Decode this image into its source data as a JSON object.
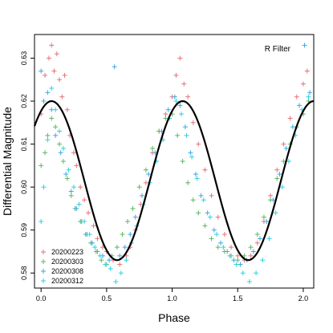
{
  "chart_data": {
    "type": "scatter",
    "title": "",
    "annotation": "R Filter",
    "xlabel": "Phase",
    "ylabel": "Differential Magnitude",
    "xlim": [
      -0.05,
      2.08
    ],
    "ylim": [
      0.5765,
      0.6355
    ],
    "x_ticks": [
      0.0,
      0.5,
      1.0,
      1.5,
      2.0
    ],
    "x_tick_labels": [
      "0.0",
      "0.5",
      "1.0",
      "1.5",
      "2.0"
    ],
    "y_ticks": [
      0.58,
      0.59,
      0.6,
      0.61,
      0.62,
      0.63
    ],
    "y_tick_labels": [
      "0.58",
      "0.59",
      "0.60",
      "0.61",
      "0.62",
      "0.63"
    ],
    "y_reversed": false,
    "marker": "+",
    "series": [
      {
        "name": "20200223",
        "color": "#e8717a",
        "points": [
          [
            0.0,
            0.617
          ],
          [
            0.03,
            0.626
          ],
          [
            0.06,
            0.63
          ],
          [
            0.08,
            0.633
          ],
          [
            0.1,
            0.627
          ],
          [
            0.12,
            0.631
          ],
          [
            0.14,
            0.625
          ],
          [
            0.16,
            0.621
          ],
          [
            0.18,
            0.626
          ],
          [
            0.2,
            0.618
          ],
          [
            0.22,
            0.612
          ],
          [
            0.25,
            0.608
          ],
          [
            0.27,
            0.605
          ],
          [
            0.3,
            0.6
          ],
          [
            0.33,
            0.597
          ],
          [
            0.36,
            0.594
          ],
          [
            0.4,
            0.591
          ],
          [
            0.43,
            0.588
          ],
          [
            0.47,
            0.586
          ],
          [
            0.5,
            0.585
          ],
          [
            0.55,
            0.583
          ],
          [
            0.6,
            0.582
          ],
          [
            0.65,
            0.584
          ],
          [
            0.68,
            0.586
          ],
          [
            0.72,
            0.59
          ],
          [
            0.76,
            0.596
          ],
          [
            0.8,
            0.601
          ],
          [
            0.85,
            0.608
          ],
          [
            0.9,
            0.613
          ],
          [
            0.95,
            0.617
          ],
          [
            1.0,
            0.621
          ],
          [
            1.03,
            0.626
          ],
          [
            1.06,
            0.63
          ],
          [
            1.09,
            0.624
          ],
          [
            1.12,
            0.621
          ],
          [
            1.16,
            0.615
          ],
          [
            1.2,
            0.61
          ],
          [
            1.25,
            0.604
          ],
          [
            1.3,
            0.598
          ],
          [
            1.35,
            0.593
          ],
          [
            1.4,
            0.589
          ],
          [
            1.45,
            0.586
          ],
          [
            1.5,
            0.584
          ],
          [
            1.55,
            0.583
          ],
          [
            1.6,
            0.584
          ],
          [
            1.65,
            0.587
          ],
          [
            1.7,
            0.592
          ],
          [
            1.75,
            0.598
          ],
          [
            1.8,
            0.604
          ],
          [
            1.85,
            0.61
          ],
          [
            1.9,
            0.616
          ],
          [
            1.95,
            0.621
          ],
          [
            2.0,
            0.624
          ],
          [
            2.03,
            0.627
          ]
        ]
      },
      {
        "name": "20200303",
        "color": "#5cb85c",
        "points": [
          [
            0.0,
            0.605
          ],
          [
            0.03,
            0.608
          ],
          [
            0.05,
            0.612
          ],
          [
            0.08,
            0.616
          ],
          [
            0.11,
            0.614
          ],
          [
            0.14,
            0.61
          ],
          [
            0.17,
            0.606
          ],
          [
            0.2,
            0.602
          ],
          [
            0.23,
            0.598
          ],
          [
            0.26,
            0.595
          ],
          [
            0.3,
            0.592
          ],
          [
            0.34,
            0.589
          ],
          [
            0.38,
            0.587
          ],
          [
            0.42,
            0.585
          ],
          [
            0.46,
            0.583
          ],
          [
            0.5,
            0.582
          ],
          [
            0.54,
            0.584
          ],
          [
            0.58,
            0.586
          ],
          [
            0.62,
            0.589
          ],
          [
            0.66,
            0.592
          ],
          [
            0.7,
            0.595
          ],
          [
            0.75,
            0.6
          ],
          [
            0.8,
            0.604
          ],
          [
            0.85,
            0.609
          ],
          [
            0.9,
            0.613
          ],
          [
            0.95,
            0.616
          ],
          [
            1.0,
            0.617
          ],
          [
            1.04,
            0.612
          ],
          [
            1.08,
            0.606
          ],
          [
            1.12,
            0.601
          ],
          [
            1.16,
            0.597
          ],
          [
            1.2,
            0.594
          ],
          [
            1.25,
            0.591
          ],
          [
            1.3,
            0.588
          ],
          [
            1.35,
            0.586
          ],
          [
            1.4,
            0.585
          ],
          [
            1.45,
            0.584
          ],
          [
            1.5,
            0.583
          ],
          [
            1.55,
            0.584
          ],
          [
            1.6,
            0.586
          ],
          [
            1.65,
            0.589
          ],
          [
            1.7,
            0.593
          ],
          [
            1.75,
            0.597
          ],
          [
            1.8,
            0.602
          ],
          [
            1.85,
            0.606
          ],
          [
            1.9,
            0.61
          ],
          [
            1.95,
            0.614
          ],
          [
            2.0,
            0.617
          ],
          [
            2.04,
            0.62
          ]
        ]
      },
      {
        "name": "20200308",
        "color": "#3fa7e0",
        "points": [
          [
            0.0,
            0.627
          ],
          [
            0.02,
            0.62
          ],
          [
            0.05,
            0.622
          ],
          [
            0.08,
            0.618
          ],
          [
            0.11,
            0.612
          ],
          [
            0.15,
            0.608
          ],
          [
            0.19,
            0.603
          ],
          [
            0.23,
            0.599
          ],
          [
            0.27,
            0.595
          ],
          [
            0.31,
            0.592
          ],
          [
            0.35,
            0.589
          ],
          [
            0.39,
            0.587
          ],
          [
            0.43,
            0.585
          ],
          [
            0.47,
            0.584
          ],
          [
            0.52,
            0.583
          ],
          [
            0.56,
            0.628
          ],
          [
            0.6,
            0.584
          ],
          [
            0.64,
            0.586
          ],
          [
            0.68,
            0.589
          ],
          [
            0.72,
            0.593
          ],
          [
            0.77,
            0.598
          ],
          [
            0.82,
            0.603
          ],
          [
            0.87,
            0.608
          ],
          [
            0.92,
            0.613
          ],
          [
            0.97,
            0.618
          ],
          [
            1.02,
            0.621
          ],
          [
            1.06,
            0.619
          ],
          [
            1.1,
            0.614
          ],
          [
            1.14,
            0.608
          ],
          [
            1.18,
            0.603
          ],
          [
            1.22,
            0.598
          ],
          [
            1.27,
            0.594
          ],
          [
            1.32,
            0.59
          ],
          [
            1.37,
            0.587
          ],
          [
            1.42,
            0.585
          ],
          [
            1.47,
            0.583
          ],
          [
            1.52,
            0.582
          ],
          [
            1.57,
            0.583
          ],
          [
            1.62,
            0.585
          ],
          [
            1.67,
            0.588
          ],
          [
            1.72,
            0.592
          ],
          [
            1.77,
            0.597
          ],
          [
            1.82,
            0.603
          ],
          [
            1.87,
            0.609
          ],
          [
            1.92,
            0.614
          ],
          [
            1.97,
            0.619
          ],
          [
            2.01,
            0.633
          ],
          [
            2.05,
            0.622
          ]
        ]
      },
      {
        "name": "20200312",
        "color": "#2fd0e0",
        "points": [
          [
            0.0,
            0.592
          ],
          [
            0.02,
            0.6
          ],
          [
            0.05,
            0.611
          ],
          [
            0.08,
            0.623
          ],
          [
            0.11,
            0.618
          ],
          [
            0.14,
            0.613
          ],
          [
            0.17,
            0.609
          ],
          [
            0.21,
            0.604
          ],
          [
            0.25,
            0.6
          ],
          [
            0.29,
            0.596
          ],
          [
            0.33,
            0.592
          ],
          [
            0.37,
            0.589
          ],
          [
            0.41,
            0.586
          ],
          [
            0.45,
            0.584
          ],
          [
            0.49,
            0.582
          ],
          [
            0.53,
            0.581
          ],
          [
            0.57,
            0.578
          ],
          [
            0.61,
            0.58
          ],
          [
            0.65,
            0.583
          ],
          [
            0.69,
            0.587
          ],
          [
            0.73,
            0.591
          ],
          [
            0.78,
            0.596
          ],
          [
            0.83,
            0.601
          ],
          [
            0.88,
            0.606
          ],
          [
            0.93,
            0.611
          ],
          [
            0.98,
            0.616
          ],
          [
            1.03,
            0.62
          ],
          [
            1.07,
            0.617
          ],
          [
            1.11,
            0.612
          ],
          [
            1.15,
            0.607
          ],
          [
            1.19,
            0.602
          ],
          [
            1.24,
            0.597
          ],
          [
            1.29,
            0.593
          ],
          [
            1.34,
            0.589
          ],
          [
            1.39,
            0.586
          ],
          [
            1.44,
            0.584
          ],
          [
            1.49,
            0.582
          ],
          [
            1.54,
            0.58
          ],
          [
            1.59,
            0.578
          ],
          [
            1.64,
            0.58
          ],
          [
            1.69,
            0.583
          ],
          [
            1.74,
            0.588
          ],
          [
            1.79,
            0.594
          ],
          [
            1.84,
            0.6
          ],
          [
            1.89,
            0.606
          ],
          [
            1.94,
            0.612
          ],
          [
            1.99,
            0.618
          ],
          [
            2.04,
            0.621
          ]
        ]
      }
    ],
    "fit": {
      "type": "sinusoid",
      "mean": 0.6015,
      "amplitude": 0.0185,
      "period": 1.0,
      "peak_phase": 0.08,
      "color": "#000000"
    },
    "legend": {
      "position": "bottom-left"
    },
    "grid": false
  }
}
